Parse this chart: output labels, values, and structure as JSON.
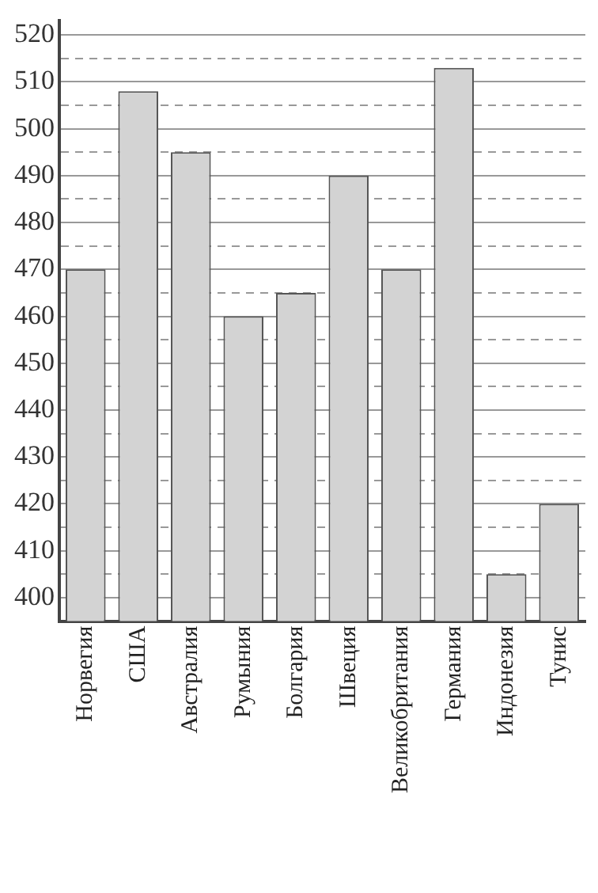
{
  "chart_data": {
    "type": "bar",
    "categories": [
      "Норвегия",
      "США",
      "Австралия",
      "Румыния",
      "Болгария",
      "Швеция",
      "Великобритания",
      "Германия",
      "Индонезия",
      "Тунис"
    ],
    "values": [
      470,
      508,
      495,
      460,
      465,
      490,
      470,
      513,
      405,
      420
    ],
    "color": "#d3d3d3",
    "ylim": [
      395,
      523
    ],
    "yticks": [
      400,
      {
        "value": 405,
        "label": null
      },
      410,
      {
        "value": 415,
        "label": null
      },
      420,
      {
        "value": 425,
        "label": null
      },
      430,
      {
        "value": 435,
        "label": null
      },
      440,
      {
        "value": 445,
        "label": null
      },
      450,
      {
        "value": 455,
        "label": null
      },
      460,
      {
        "value": 465,
        "label": null
      },
      470,
      {
        "value": 475,
        "label": null
      },
      480,
      {
        "value": 485,
        "label": null
      },
      490,
      {
        "value": 495,
        "label": null
      },
      500,
      {
        "value": 505,
        "label": null
      },
      510,
      {
        "value": 515,
        "label": null
      },
      520
    ],
    "grid": "y"
  }
}
